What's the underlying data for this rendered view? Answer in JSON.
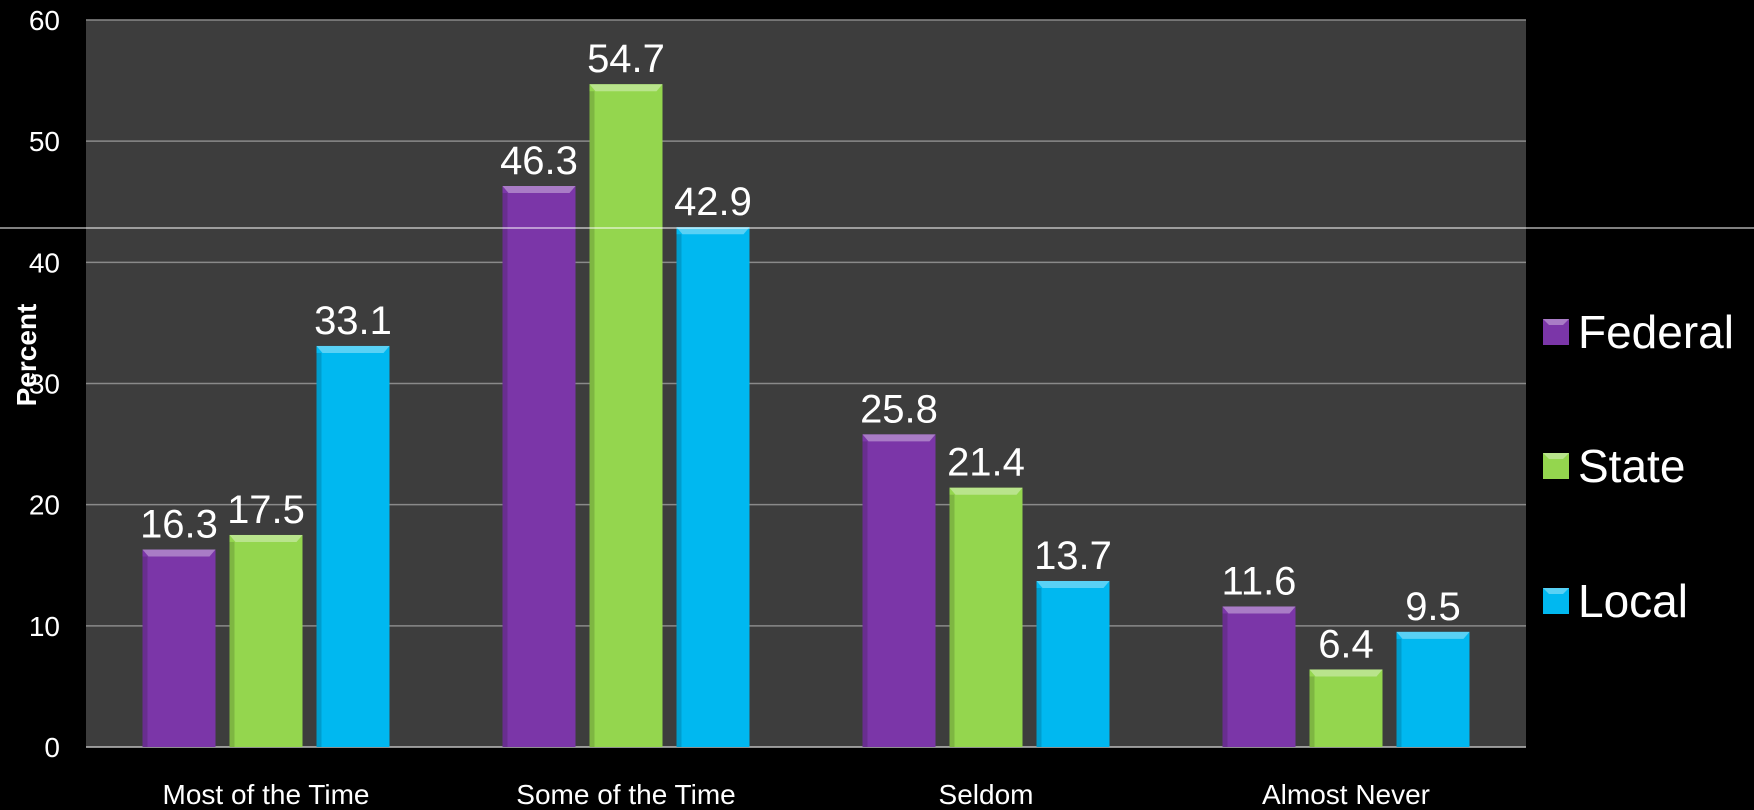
{
  "chart_data": {
    "type": "bar",
    "title": "",
    "xlabel": "",
    "ylabel": "Percent",
    "ylim": [
      0,
      60
    ],
    "yticks": [
      0,
      10,
      20,
      30,
      40,
      50,
      60
    ],
    "grid": true,
    "legend_position": "right",
    "categories": [
      "Most of the Time",
      "Some of the Time",
      "Seldom",
      "Almost Never"
    ],
    "series": [
      {
        "name": "Federal",
        "color": "#7b36a8",
        "values": [
          16.3,
          46.3,
          25.8,
          11.6
        ]
      },
      {
        "name": "State",
        "color": "#94d64e",
        "values": [
          17.5,
          54.7,
          21.4,
          6.4
        ]
      },
      {
        "name": "Local",
        "color": "#00b8f0",
        "values": [
          33.1,
          42.9,
          13.7,
          9.5
        ]
      }
    ],
    "colors": {
      "page_background": "#000000",
      "plot_background": "#3d3d3d",
      "gridline": "#8a8a8a",
      "text": "#ffffff"
    }
  }
}
